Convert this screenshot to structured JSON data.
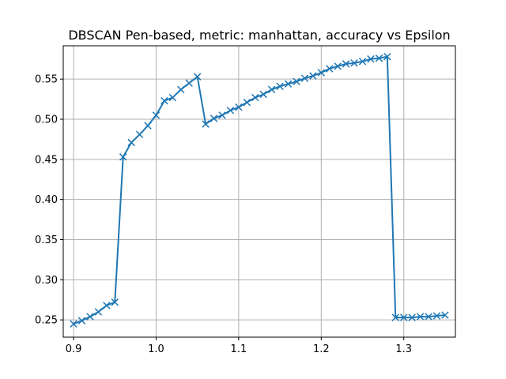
{
  "chart_data": {
    "type": "line",
    "title": "DBSCAN Pen-based, metric: manhattan, accuracy vs Epsilon",
    "xlabel": "",
    "ylabel": "",
    "xlim": [
      0.8875,
      1.3625
    ],
    "ylim": [
      0.2285,
      0.5915
    ],
    "xticks": [
      0.9,
      1.0,
      1.1,
      1.2,
      1.3
    ],
    "xtick_labels": [
      "0.9",
      "1.0",
      "1.1",
      "1.2",
      "1.3"
    ],
    "yticks": [
      0.25,
      0.3,
      0.35,
      0.4,
      0.45,
      0.5,
      0.55
    ],
    "ytick_labels": [
      "0.25",
      "0.30",
      "0.35",
      "0.40",
      "0.45",
      "0.50",
      "0.55"
    ],
    "grid": true,
    "marker": "x",
    "color": "#1f77b4",
    "x": [
      0.9,
      0.91,
      0.92,
      0.93,
      0.94,
      0.95,
      0.96,
      0.97,
      0.98,
      0.99,
      1.0,
      1.01,
      1.02,
      1.03,
      1.04,
      1.05,
      1.06,
      1.07,
      1.08,
      1.09,
      1.1,
      1.11,
      1.12,
      1.13,
      1.14,
      1.15,
      1.16,
      1.17,
      1.18,
      1.19,
      1.2,
      1.21,
      1.22,
      1.23,
      1.24,
      1.25,
      1.26,
      1.27,
      1.28,
      1.29,
      1.3,
      1.31,
      1.32,
      1.33,
      1.34,
      1.35
    ],
    "y": [
      0.245,
      0.249,
      0.254,
      0.26,
      0.268,
      0.272,
      0.453,
      0.471,
      0.481,
      0.492,
      0.505,
      0.523,
      0.527,
      0.537,
      0.545,
      0.553,
      0.494,
      0.501,
      0.505,
      0.511,
      0.515,
      0.521,
      0.527,
      0.531,
      0.537,
      0.541,
      0.544,
      0.547,
      0.551,
      0.554,
      0.558,
      0.563,
      0.566,
      0.569,
      0.57,
      0.572,
      0.575,
      0.576,
      0.578,
      0.253,
      0.253,
      0.253,
      0.254,
      0.254,
      0.255,
      0.256
    ]
  }
}
